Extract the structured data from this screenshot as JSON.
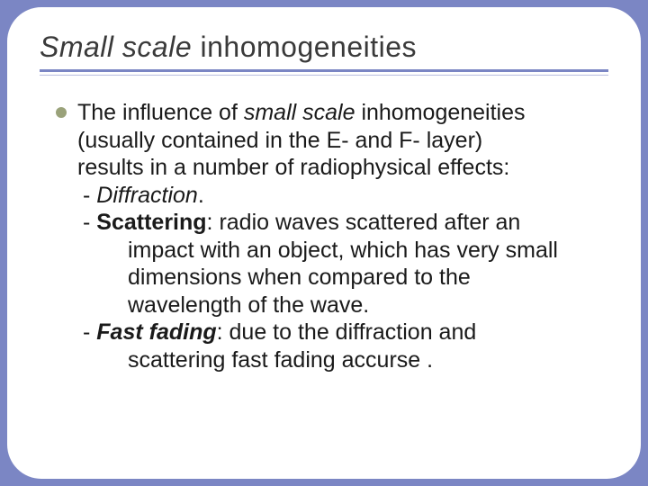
{
  "slide": {
    "background_color": "#7b86c4",
    "card_background": "#ffffff",
    "card_border_radius": 38,
    "title_prefix_italic": "Small scale",
    "title_suffix": " inhomogeneities",
    "title_fontsize": 32,
    "title_color": "#3a3a3a",
    "rule_color_primary": "#7b86c4",
    "rule_color_secondary": "#b9bee0",
    "bullet_color": "#9aa27a",
    "body_fontsize": 25,
    "body_color": "#1a1a1a",
    "intro": {
      "l1_pre": "The influence of ",
      "l1_italic": "small scale",
      "l1_post": " inhomogeneities",
      "l2": "(usually contained in the E- and F- layer)",
      "l3": "results in a number of radiophysical effects:"
    },
    "effects": [
      {
        "dash": " - ",
        "name_italic": "Diffraction",
        "post": ".",
        "cont": []
      },
      {
        "dash": "- ",
        "name_bold": "Scattering",
        "post": ": radio waves scattered after an",
        "cont": [
          "impact with an object, which has very small",
          "dimensions when compared to the",
          "wavelength of the wave."
        ]
      },
      {
        "dash": "- ",
        "name_bolditalic": "Fast fading",
        "post": ": due to the diffraction and",
        "cont": [
          "scattering fast fading accurse ."
        ]
      }
    ]
  }
}
